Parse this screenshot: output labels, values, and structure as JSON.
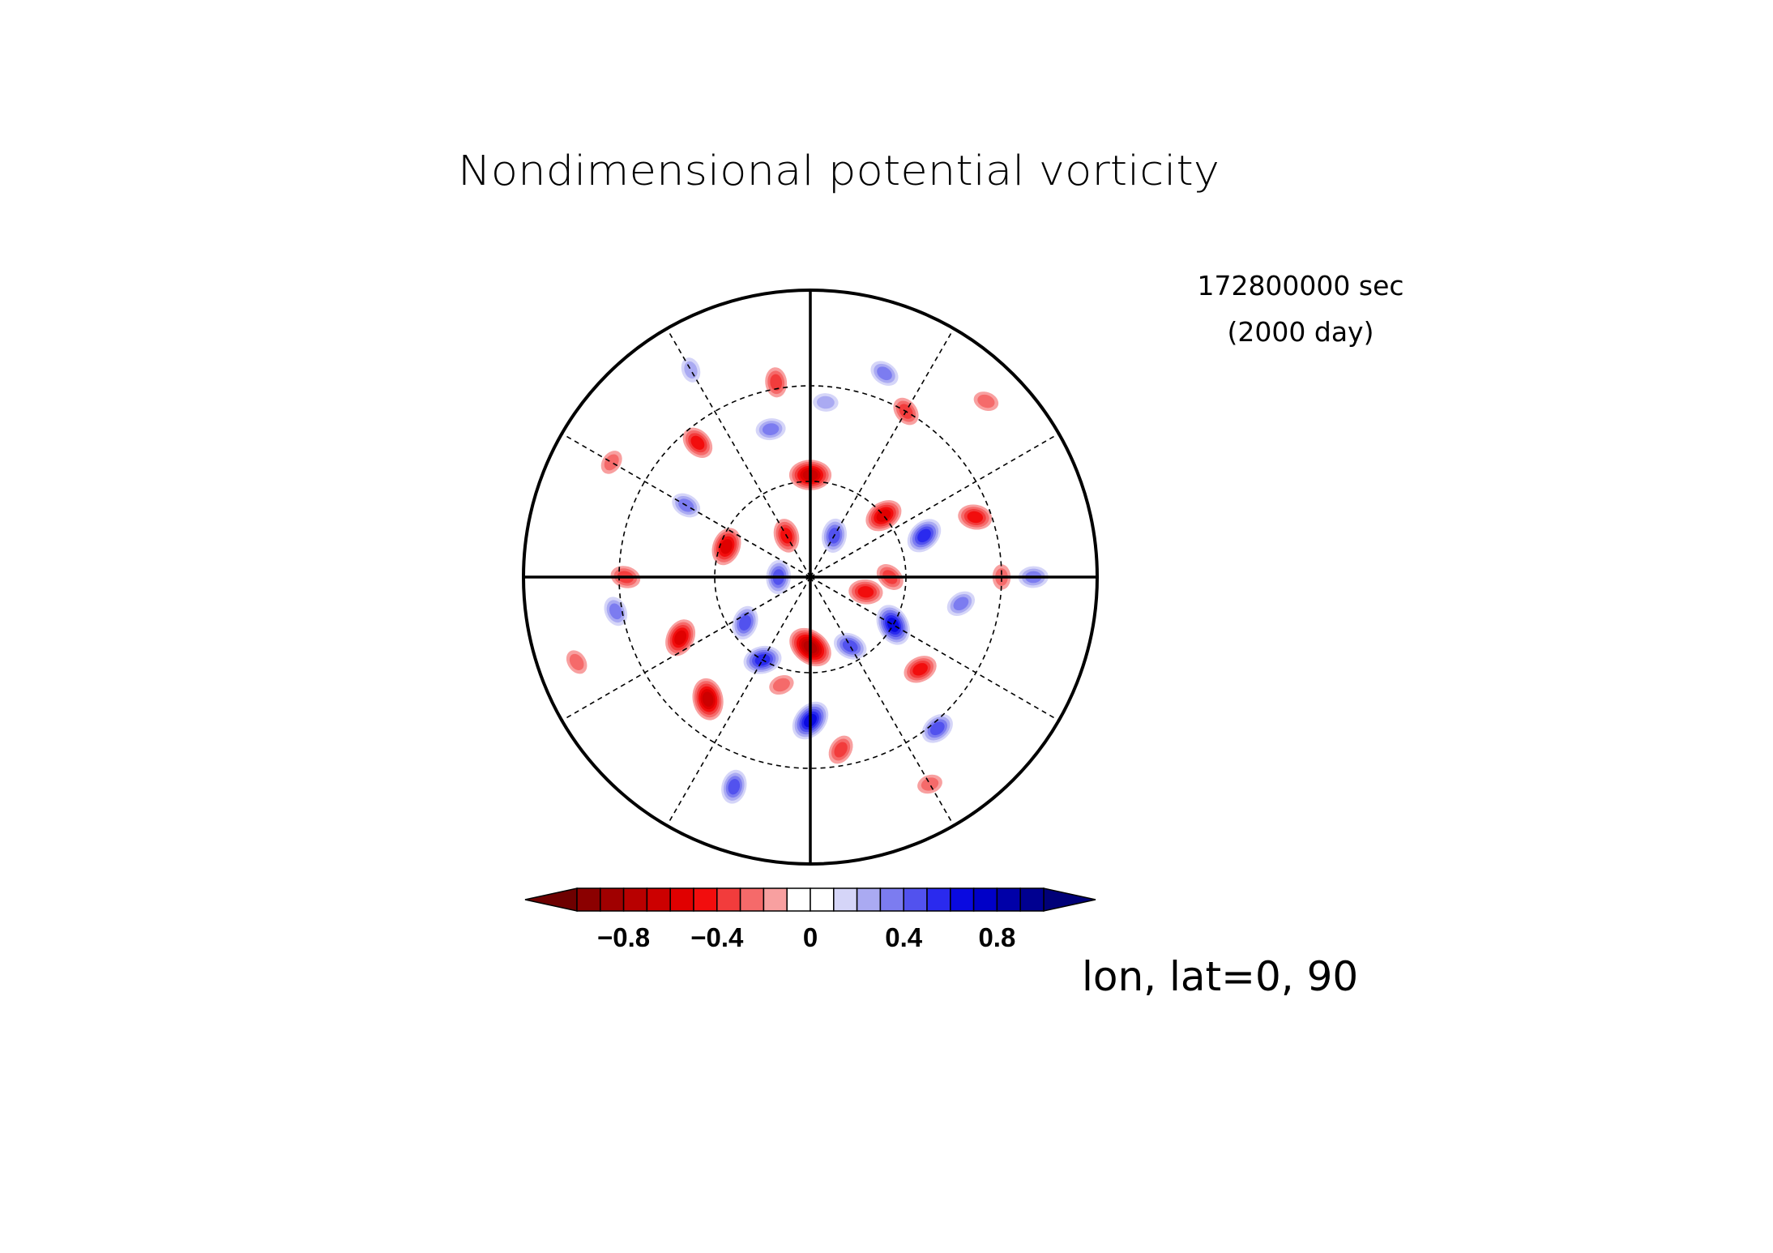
{
  "chart_data": {
    "type": "heatmap",
    "title": "Nondimensional potential vorticity",
    "projection": "polar stereographic",
    "time_seconds_label": "172800000 sec",
    "time_days_label": "(2000 day)",
    "view_label": "lon, lat=0, 90",
    "value_range": [
      -1.0,
      1.0
    ],
    "contour_interval": 0.1,
    "colorbar": {
      "extend": "both",
      "tick_values": [
        -0.8,
        -0.4,
        0,
        0.4,
        0.8
      ],
      "tick_labels": [
        "−0.8",
        "−0.4",
        "0",
        "0.4",
        "0.8"
      ],
      "levels": [
        {
          "range": [
            -1.0,
            -0.9
          ],
          "color": "#8b0000"
        },
        {
          "range": [
            -0.9,
            -0.8
          ],
          "color": "#a00000"
        },
        {
          "range": [
            -0.8,
            -0.7
          ],
          "color": "#b80000"
        },
        {
          "range": [
            -0.7,
            -0.6
          ],
          "color": "#cc0000"
        },
        {
          "range": [
            -0.6,
            -0.5
          ],
          "color": "#e00000"
        },
        {
          "range": [
            -0.5,
            -0.4
          ],
          "color": "#f20d0d"
        },
        {
          "range": [
            -0.4,
            -0.3
          ],
          "color": "#f23c3c"
        },
        {
          "range": [
            -0.3,
            -0.2
          ],
          "color": "#f56a6a"
        },
        {
          "range": [
            -0.2,
            -0.1
          ],
          "color": "#f8a0a0"
        },
        {
          "range": [
            -0.1,
            0.0
          ],
          "color": "#ffffff"
        },
        {
          "range": [
            0.0,
            0.1
          ],
          "color": "#ffffff"
        },
        {
          "range": [
            0.1,
            0.2
          ],
          "color": "#d5d5f8"
        },
        {
          "range": [
            0.2,
            0.3
          ],
          "color": "#aaaaf2"
        },
        {
          "range": [
            0.3,
            0.4
          ],
          "color": "#7c7cf0"
        },
        {
          "range": [
            0.4,
            0.5
          ],
          "color": "#5252ee"
        },
        {
          "range": [
            0.5,
            0.6
          ],
          "color": "#2a2aee"
        },
        {
          "range": [
            0.6,
            0.7
          ],
          "color": "#0a0ae0"
        },
        {
          "range": [
            0.7,
            0.8
          ],
          "color": "#0000c8"
        },
        {
          "range": [
            0.8,
            0.9
          ],
          "color": "#0000a8"
        },
        {
          "range": [
            0.9,
            1.0
          ],
          "color": "#000090"
        }
      ],
      "under_color": "#6e0000",
      "over_color": "#000078"
    },
    "grid": {
      "latitude_circles_deg": [
        30,
        60
      ],
      "meridian_spacing_deg": 30,
      "solid_meridians_deg": [
        0,
        90,
        180,
        270
      ],
      "dashed_meridians_deg": [
        30,
        60,
        120,
        150,
        210,
        240,
        300,
        330
      ]
    },
    "field_features": [
      {
        "lon_deg": 90,
        "colat_deg": 32,
        "value": -0.7
      },
      {
        "lon_deg": 270,
        "colat_deg": 22,
        "value": -0.8
      },
      {
        "lon_deg": 120,
        "colat_deg": 15,
        "value": -0.5
      },
      {
        "lon_deg": 160,
        "colat_deg": 28,
        "value": -0.6
      },
      {
        "lon_deg": 40,
        "colat_deg": 30,
        "value": -0.6
      },
      {
        "lon_deg": 345,
        "colat_deg": 18,
        "value": -0.5
      },
      {
        "lon_deg": 0,
        "colat_deg": 25,
        "value": -0.4
      },
      {
        "lon_deg": 230,
        "colat_deg": 50,
        "value": -0.7
      },
      {
        "lon_deg": 205,
        "colat_deg": 45,
        "value": -0.6
      },
      {
        "lon_deg": 320,
        "colat_deg": 45,
        "value": -0.5
      },
      {
        "lon_deg": 20,
        "colat_deg": 55,
        "value": -0.5
      },
      {
        "lon_deg": 130,
        "colat_deg": 55,
        "value": -0.5
      },
      {
        "lon_deg": 100,
        "colat_deg": 62,
        "value": -0.4
      },
      {
        "lon_deg": 280,
        "colat_deg": 55,
        "value": -0.4
      },
      {
        "lon_deg": 255,
        "colat_deg": 35,
        "value": -0.3
      },
      {
        "lon_deg": 180,
        "colat_deg": 58,
        "value": -0.4
      },
      {
        "lon_deg": 60,
        "colat_deg": 60,
        "value": -0.4
      },
      {
        "lon_deg": 0,
        "colat_deg": 60,
        "value": -0.3
      },
      {
        "lon_deg": 150,
        "colat_deg": 72,
        "value": -0.3
      },
      {
        "lon_deg": 300,
        "colat_deg": 75,
        "value": -0.3
      },
      {
        "lon_deg": 45,
        "colat_deg": 78,
        "value": -0.3
      },
      {
        "lon_deg": 200,
        "colat_deg": 78,
        "value": -0.3
      },
      {
        "lon_deg": 180,
        "colat_deg": 10,
        "value": 0.5
      },
      {
        "lon_deg": 270,
        "colat_deg": 45,
        "value": 0.7
      },
      {
        "lon_deg": 240,
        "colat_deg": 30,
        "value": 0.6
      },
      {
        "lon_deg": 300,
        "colat_deg": 25,
        "value": 0.5
      },
      {
        "lon_deg": 330,
        "colat_deg": 30,
        "value": 0.7
      },
      {
        "lon_deg": 60,
        "colat_deg": 15,
        "value": 0.5
      },
      {
        "lon_deg": 20,
        "colat_deg": 38,
        "value": 0.6
      },
      {
        "lon_deg": 105,
        "colat_deg": 48,
        "value": 0.4
      },
      {
        "lon_deg": 150,
        "colat_deg": 45,
        "value": 0.4
      },
      {
        "lon_deg": 190,
        "colat_deg": 62,
        "value": 0.4
      },
      {
        "lon_deg": 250,
        "colat_deg": 70,
        "value": 0.5
      },
      {
        "lon_deg": 310,
        "colat_deg": 62,
        "value": 0.5
      },
      {
        "lon_deg": 0,
        "colat_deg": 70,
        "value": 0.4
      },
      {
        "lon_deg": 70,
        "colat_deg": 68,
        "value": 0.4
      },
      {
        "lon_deg": 120,
        "colat_deg": 75,
        "value": 0.3
      },
      {
        "lon_deg": 215,
        "colat_deg": 25,
        "value": 0.5
      },
      {
        "lon_deg": 350,
        "colat_deg": 48,
        "value": 0.4
      },
      {
        "lon_deg": 85,
        "colat_deg": 55,
        "value": 0.3
      }
    ]
  }
}
